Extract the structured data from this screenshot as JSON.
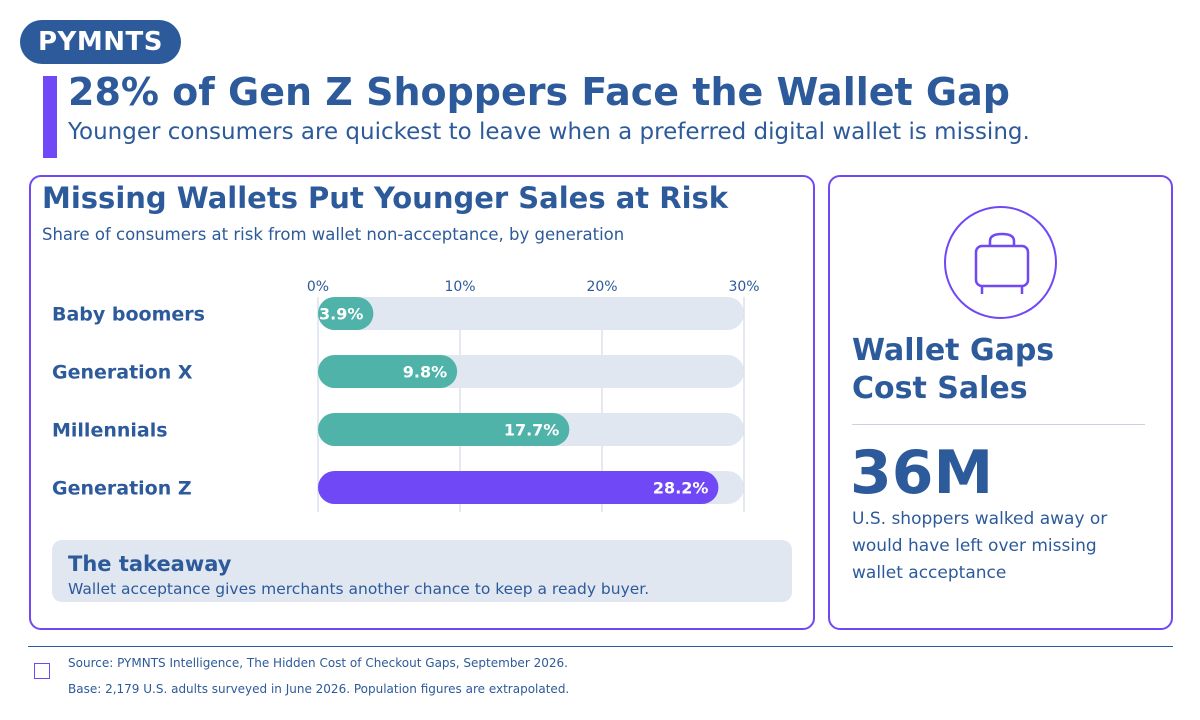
{
  "brand": {
    "logo_text": "PYMNTS"
  },
  "header": {
    "headline": "28% of Gen Z Shoppers Face the Wallet Gap",
    "subhead": "Younger consumers are quickest to leave when a preferred digital wallet is missing."
  },
  "chart_data": {
    "type": "bar",
    "orientation": "horizontal",
    "title": "Missing Wallets Put Younger Sales at Risk",
    "subtitle": "Share of consumers at risk from wallet non-acceptance, by generation",
    "categories": [
      "Baby boomers",
      "Generation X",
      "Millennials",
      "Generation Z"
    ],
    "values": [
      3.9,
      9.8,
      17.7,
      28.2
    ],
    "value_labels": [
      "3.9%",
      "9.8%",
      "17.7%",
      "28.2%"
    ],
    "highlight_index": 3,
    "xlim": [
      0,
      30
    ],
    "ticks": [
      0,
      10,
      20,
      30
    ],
    "tick_labels": [
      "0%",
      "10%",
      "20%",
      "30%"
    ],
    "grid": true,
    "colors": {
      "bar": "#4fb3aa",
      "highlight": "#7048f5",
      "track": "#e1e7f1",
      "grid": "#c9d2e2"
    }
  },
  "takeaway": {
    "title": "The takeaway",
    "text": "Wallet acceptance gives merchants another chance to keep a ready buyer."
  },
  "stat_panel": {
    "icon": "shopping-bag-icon",
    "heading_line1": "Wallet Gaps",
    "heading_line2": "Cost Sales",
    "big_number": "36M",
    "description": "U.S. shoppers walked away or would have left over missing wallet acceptance"
  },
  "footer": {
    "source": "Source: PYMNTS Intelligence, The Hidden Cost of Checkout Gaps, September 2026.",
    "base": "Base: 2,179 U.S. adults surveyed in June 2026. Population figures are extrapolated."
  },
  "colors": {
    "navy": "#2d5a9a",
    "purple": "#7048f5",
    "teal": "#4fb3aa",
    "light": "#e1e7f1"
  }
}
